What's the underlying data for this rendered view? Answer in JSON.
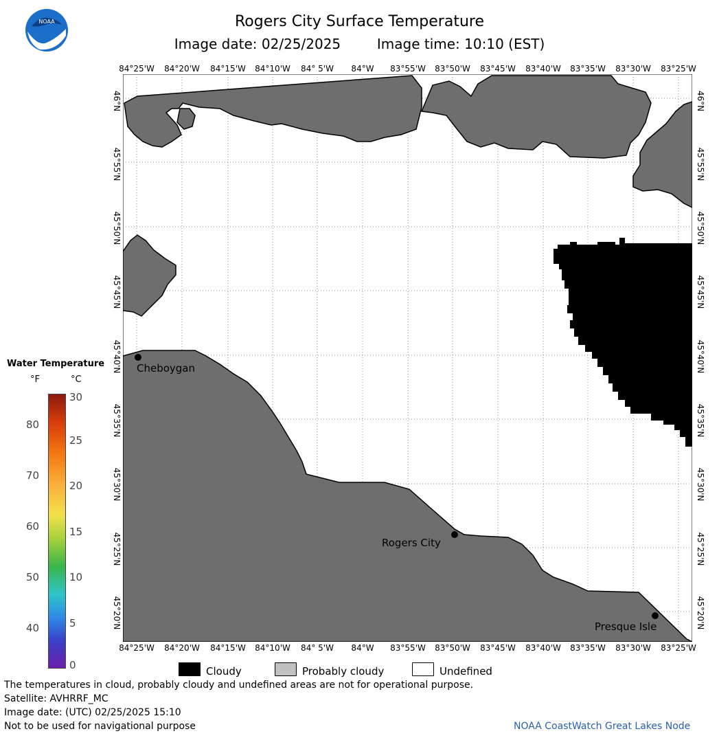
{
  "header": {
    "title": "Rogers City Surface Temperature",
    "image_date": "Image date: 02/25/2025",
    "image_time": "Image time: 10:10 (EST)",
    "logo_text": "NOAA"
  },
  "map": {
    "lon_labels": [
      "84°25'W",
      "84°20'W",
      "84°15'W",
      "84°10'W",
      "84° 5'W",
      "84°W",
      "83°55'W",
      "83°50'W",
      "83°45'W",
      "83°40'W",
      "83°35'W",
      "83°30'W",
      "83°25'W"
    ],
    "lat_labels": [
      "46°N",
      "45°55'N",
      "45°50'N",
      "45°45'N",
      "45°40'N",
      "45°35'N",
      "45°30'N",
      "45°25'N",
      "45°20'N"
    ],
    "cities": [
      {
        "name": "Cheboygan"
      },
      {
        "name": "Rogers City"
      },
      {
        "name": "Presque Isle"
      }
    ],
    "colors": {
      "land": "#6e6e6e",
      "cloudy": "#000000",
      "probably_cloudy": "#c0c0c0",
      "undefined": "#ffffff",
      "grid": "#888888"
    }
  },
  "legend": {
    "title": "Water Temperature",
    "unit_f": "°F",
    "unit_c": "°C",
    "f_ticks": [
      "80",
      "70",
      "60",
      "50",
      "40"
    ],
    "c_ticks": [
      "30",
      "25",
      "20",
      "15",
      "10",
      "5",
      "0"
    ]
  },
  "key": {
    "cloudy": "Cloudy",
    "probably_cloudy": "Probably cloudy",
    "undefined": "Undefined"
  },
  "footer": {
    "line1": "The temperatures in cloud, probably cloudy and undefined areas are not for operational purpose.",
    "line2": "Satellite: AVHRRF_MC",
    "line3": "Image date: (UTC) 02/25/2025  15:10",
    "line4": "Not to be used for navigational purpose",
    "credit": "NOAA CoastWatch Great Lakes Node"
  }
}
